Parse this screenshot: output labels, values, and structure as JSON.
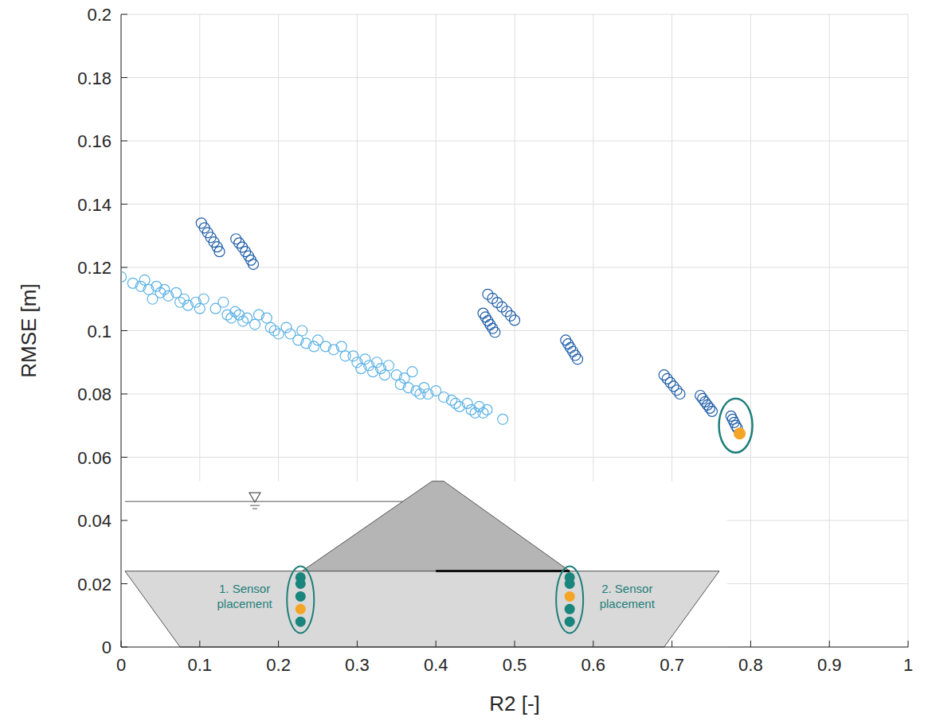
{
  "chart_data": {
    "type": "scatter",
    "x_label": "R2 [-]",
    "y_label": "RMSE [m]",
    "xlim": [
      0,
      1
    ],
    "ylim": [
      0,
      0.2
    ],
    "xticks": [
      0,
      0.1,
      0.2,
      0.3,
      0.4,
      0.5,
      0.6,
      0.7,
      0.8,
      0.9,
      1
    ],
    "yticks": [
      0,
      0.02,
      0.04,
      0.06,
      0.08,
      0.1,
      0.12,
      0.14,
      0.16,
      0.18,
      0.2
    ],
    "grid": true,
    "annotations": [
      "1. Sensor placement",
      "2. Sensor placement"
    ],
    "series": [
      {
        "color": "#5cb2e6",
        "marker": "open-circle",
        "x": [
          0.0,
          0.015,
          0.025,
          0.03,
          0.035,
          0.04,
          0.045,
          0.05,
          0.055,
          0.06,
          0.07,
          0.075,
          0.08,
          0.085,
          0.095,
          0.1,
          0.105,
          0.12,
          0.13,
          0.135,
          0.14,
          0.145,
          0.15,
          0.155,
          0.16,
          0.17,
          0.175,
          0.185,
          0.19,
          0.195,
          0.2,
          0.21,
          0.215,
          0.225,
          0.23,
          0.235,
          0.245,
          0.25,
          0.26,
          0.27,
          0.28,
          0.285,
          0.295,
          0.3,
          0.305,
          0.31,
          0.315,
          0.32,
          0.325,
          0.33,
          0.335,
          0.34,
          0.35,
          0.355,
          0.36,
          0.365,
          0.37,
          0.375,
          0.38,
          0.385,
          0.39,
          0.4,
          0.41,
          0.42,
          0.425,
          0.43,
          0.44,
          0.445,
          0.45,
          0.455,
          0.46,
          0.465,
          0.485
        ],
        "values": [
          0.117,
          0.115,
          0.114,
          0.116,
          0.113,
          0.11,
          0.114,
          0.112,
          0.113,
          0.111,
          0.112,
          0.109,
          0.11,
          0.108,
          0.109,
          0.107,
          0.11,
          0.107,
          0.109,
          0.105,
          0.104,
          0.106,
          0.105,
          0.103,
          0.104,
          0.102,
          0.105,
          0.104,
          0.101,
          0.1,
          0.099,
          0.101,
          0.099,
          0.097,
          0.1,
          0.096,
          0.095,
          0.097,
          0.095,
          0.094,
          0.095,
          0.092,
          0.092,
          0.09,
          0.088,
          0.091,
          0.089,
          0.087,
          0.09,
          0.088,
          0.086,
          0.089,
          0.086,
          0.083,
          0.085,
          0.082,
          0.087,
          0.081,
          0.08,
          0.082,
          0.08,
          0.081,
          0.079,
          0.078,
          0.077,
          0.076,
          0.077,
          0.075,
          0.074,
          0.076,
          0.074,
          0.075,
          0.072
        ]
      },
      {
        "color": "#1f5ea8",
        "marker": "open-circle",
        "x": [
          0.102,
          0.106,
          0.11,
          0.114,
          0.118,
          0.122,
          0.125,
          0.146,
          0.15,
          0.154,
          0.158,
          0.162,
          0.165,
          0.168,
          0.46,
          0.463,
          0.466,
          0.469,
          0.472,
          0.475,
          0.466,
          0.472,
          0.478,
          0.484,
          0.49,
          0.495,
          0.5,
          0.565,
          0.568,
          0.571,
          0.574,
          0.577,
          0.58,
          0.69,
          0.694,
          0.698,
          0.702,
          0.706,
          0.71,
          0.736,
          0.739,
          0.742,
          0.745,
          0.748,
          0.751,
          0.775,
          0.777,
          0.779,
          0.781,
          0.783
        ],
        "values": [
          0.134,
          0.1325,
          0.131,
          0.1295,
          0.128,
          0.1265,
          0.125,
          0.129,
          0.1277,
          0.1264,
          0.125,
          0.1236,
          0.1223,
          0.121,
          0.1055,
          0.1043,
          0.1031,
          0.1019,
          0.1007,
          0.0995,
          0.1115,
          0.1102,
          0.1089,
          0.1075,
          0.1061,
          0.1047,
          0.1033,
          0.097,
          0.0958,
          0.0946,
          0.0934,
          0.0922,
          0.091,
          0.086,
          0.0848,
          0.0836,
          0.0824,
          0.0812,
          0.08,
          0.0795,
          0.0785,
          0.0775,
          0.0765,
          0.0755,
          0.0745,
          0.073,
          0.072,
          0.071,
          0.07,
          0.0692
        ]
      },
      {
        "color": "#f5a524",
        "marker": "filled-circle",
        "x": [
          0.786
        ],
        "values": [
          0.0675
        ]
      }
    ]
  }
}
